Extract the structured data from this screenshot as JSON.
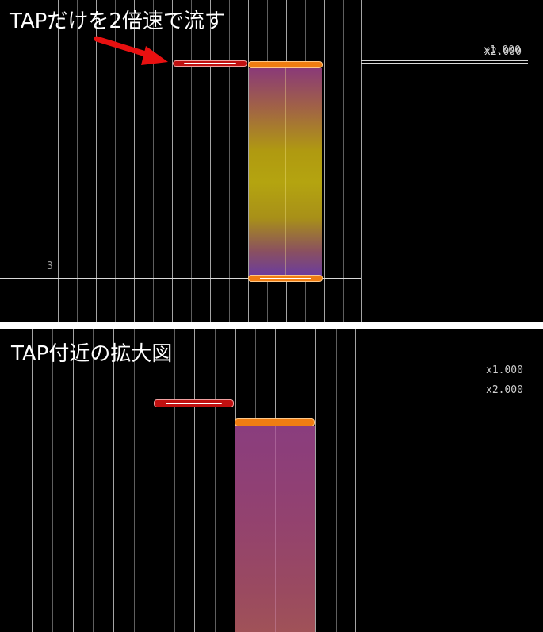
{
  "top_panel": {
    "caption": "TAPだけを2倍速で流す",
    "speed_labels": [
      "x1.000",
      "x2.000"
    ],
    "measure_number": "3"
  },
  "bottom_panel": {
    "caption": "TAP付近の拡大図",
    "speed_labels": [
      "x1.000",
      "x2.000"
    ]
  },
  "colors": {
    "tap_note": "#c01010",
    "hold_note": "#ef7d12",
    "arrow": "#e81010"
  },
  "icons": [
    "arrow-pointer-icon"
  ]
}
